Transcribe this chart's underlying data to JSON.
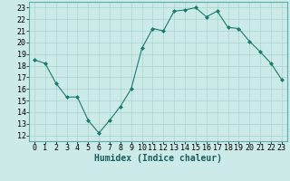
{
  "x": [
    0,
    1,
    2,
    3,
    4,
    5,
    6,
    7,
    8,
    9,
    10,
    11,
    12,
    13,
    14,
    15,
    16,
    17,
    18,
    19,
    20,
    21,
    22,
    23
  ],
  "y": [
    18.5,
    18.2,
    16.5,
    15.3,
    15.3,
    13.3,
    12.2,
    13.3,
    14.5,
    16.0,
    19.5,
    21.2,
    21.0,
    22.7,
    22.8,
    23.0,
    22.2,
    22.7,
    21.3,
    21.2,
    20.1,
    19.2,
    18.2,
    16.8
  ],
  "line_color": "#1a7a6e",
  "marker": "D",
  "marker_size": 2.0,
  "bg_color": "#cceae8",
  "grid_color": "#aad4d0",
  "xlabel": "Humidex (Indice chaleur)",
  "xlim": [
    -0.5,
    23.5
  ],
  "ylim": [
    11.5,
    23.5
  ],
  "yticks": [
    12,
    13,
    14,
    15,
    16,
    17,
    18,
    19,
    20,
    21,
    22,
    23
  ],
  "xticks": [
    0,
    1,
    2,
    3,
    4,
    5,
    6,
    7,
    8,
    9,
    10,
    11,
    12,
    13,
    14,
    15,
    16,
    17,
    18,
    19,
    20,
    21,
    22,
    23
  ],
  "tick_fontsize": 6.0,
  "xlabel_fontsize": 7.0,
  "linewidth": 0.8
}
